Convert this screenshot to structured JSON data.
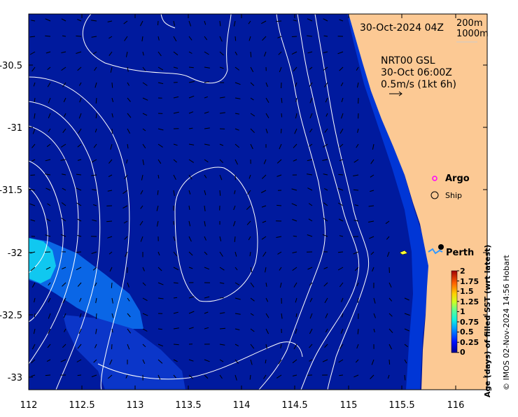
{
  "map": {
    "date_label": "30-Oct-2024 04Z",
    "depth_legend": [
      "200m",
      "1000m"
    ],
    "model_label": [
      "NRT00 GSL",
      "30-Oct 06:00Z",
      "0.5m/s (1kt 6h)"
    ],
    "places": {
      "argo": "Argo",
      "ship": "Ship",
      "city": "Perth"
    },
    "credit": "© IMOS 02-Nov-2024 14:56 Hobart",
    "x_ticks": [
      "112",
      "112.5",
      "113",
      "113.5",
      "114",
      "114.5",
      "115",
      "115.5",
      "116"
    ],
    "y_ticks": [
      "-30.5",
      "-31",
      "-31.5",
      "-32",
      "-32.5",
      "-33"
    ],
    "colors": {
      "ocean": "#001a9e",
      "land": "#fcc994",
      "contour": "#ffffff",
      "argo_marker": "#ff00ff",
      "young_sst": "#10c8f0"
    }
  },
  "colorbar": {
    "title": "Age (days) of filled SST (wrt latest)",
    "ticks": [
      "2",
      "1.75",
      "1.5",
      "1.25",
      "1",
      "0.75",
      "0.5",
      "0.25",
      "0"
    ],
    "range": [
      0,
      2
    ]
  }
}
